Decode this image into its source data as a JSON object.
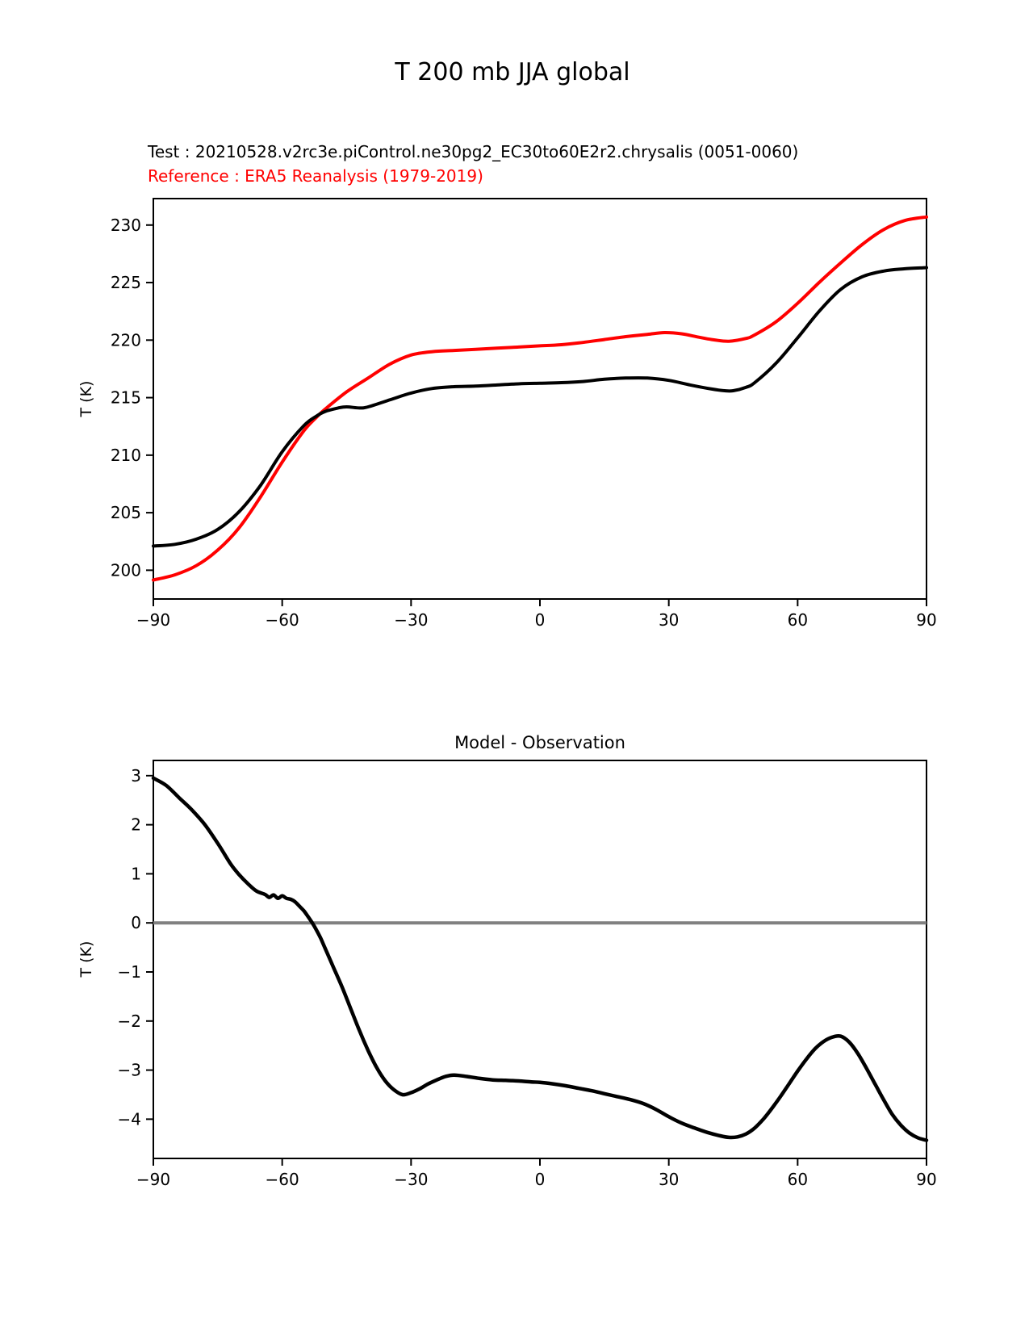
{
  "figure": {
    "title": "T 200 mb JJA global",
    "test_label": "Test : 20210528.v2rc3e.piControl.ne30pg2_EC30to60E2r2.chrysalis (0051-0060)",
    "reference_label": "Reference : ERA5 Reanalysis (1979-2019)"
  },
  "colors": {
    "test_curve": "#000000",
    "reference_curve": "#ff0000",
    "diff_curve": "#000000",
    "zero_line": "#808080",
    "reference_text": "#ff0000"
  },
  "chart_data": [
    {
      "type": "line",
      "title": "",
      "xlabel": "",
      "ylabel": "T (K)",
      "xlim": [
        -90,
        90
      ],
      "ylim": [
        197.5,
        232.3
      ],
      "xticks": [
        -90,
        -60,
        -30,
        0,
        30,
        60,
        90
      ],
      "yticks": [
        200,
        205,
        210,
        215,
        220,
        225,
        230
      ],
      "grid": false,
      "legend_position": "none",
      "series": [
        {
          "name": "Test : 20210528.v2rc3e.piControl.ne30pg2_EC30to60E2r2.chrysalis (0051-0060)",
          "color_key": "test_curve",
          "points": [
            [
              -90,
              202.1
            ],
            [
              -85,
              202.25
            ],
            [
              -80,
              202.7
            ],
            [
              -75,
              203.55
            ],
            [
              -70,
              205.1
            ],
            [
              -65,
              207.4
            ],
            [
              -60,
              210.3
            ],
            [
              -55,
              212.55
            ],
            [
              -52,
              213.4
            ],
            [
              -50,
              213.8
            ],
            [
              -47,
              214.1
            ],
            [
              -45,
              214.2
            ],
            [
              -42,
              214.1
            ],
            [
              -40,
              214.2
            ],
            [
              -35,
              214.8
            ],
            [
              -30,
              215.4
            ],
            [
              -25,
              215.8
            ],
            [
              -20,
              215.95
            ],
            [
              -15,
              216.0
            ],
            [
              -10,
              216.1
            ],
            [
              -5,
              216.2
            ],
            [
              0,
              216.25
            ],
            [
              5,
              216.3
            ],
            [
              10,
              216.4
            ],
            [
              15,
              216.6
            ],
            [
              20,
              216.7
            ],
            [
              25,
              216.7
            ],
            [
              30,
              216.5
            ],
            [
              35,
              216.1
            ],
            [
              40,
              215.75
            ],
            [
              43,
              215.6
            ],
            [
              45,
              215.6
            ],
            [
              48,
              215.9
            ],
            [
              50,
              216.3
            ],
            [
              55,
              218.0
            ],
            [
              60,
              220.2
            ],
            [
              65,
              222.5
            ],
            [
              70,
              224.4
            ],
            [
              75,
              225.5
            ],
            [
              80,
              226.0
            ],
            [
              85,
              226.2
            ],
            [
              90,
              226.3
            ]
          ]
        },
        {
          "name": "Reference : ERA5 Reanalysis (1979-2019)",
          "color_key": "reference_curve",
          "points": [
            [
              -90,
              199.15
            ],
            [
              -85,
              199.6
            ],
            [
              -80,
              200.4
            ],
            [
              -75,
              201.75
            ],
            [
              -70,
              203.7
            ],
            [
              -65,
              206.4
            ],
            [
              -60,
              209.4
            ],
            [
              -55,
              212.1
            ],
            [
              -52,
              213.3
            ],
            [
              -50,
              214.0
            ],
            [
              -45,
              215.5
            ],
            [
              -40,
              216.7
            ],
            [
              -35,
              217.9
            ],
            [
              -30,
              218.7
            ],
            [
              -25,
              219.0
            ],
            [
              -20,
              219.1
            ],
            [
              -15,
              219.2
            ],
            [
              -10,
              219.3
            ],
            [
              -5,
              219.4
            ],
            [
              0,
              219.5
            ],
            [
              5,
              219.6
            ],
            [
              10,
              219.8
            ],
            [
              15,
              220.05
            ],
            [
              20,
              220.3
            ],
            [
              25,
              220.5
            ],
            [
              29,
              220.65
            ],
            [
              33,
              220.55
            ],
            [
              37,
              220.25
            ],
            [
              40,
              220.05
            ],
            [
              44,
              219.9
            ],
            [
              48,
              220.15
            ],
            [
              50,
              220.45
            ],
            [
              55,
              221.6
            ],
            [
              60,
              223.2
            ],
            [
              65,
              225.0
            ],
            [
              70,
              226.7
            ],
            [
              75,
              228.3
            ],
            [
              80,
              229.6
            ],
            [
              85,
              230.4
            ],
            [
              90,
              230.7
            ]
          ]
        }
      ]
    },
    {
      "type": "line",
      "title": "Model - Observation",
      "xlabel": "",
      "ylabel": "T (K)",
      "xlim": [
        -90,
        90
      ],
      "ylim": [
        -4.8,
        3.31
      ],
      "xticks": [
        -90,
        -60,
        -30,
        0,
        30,
        60,
        90
      ],
      "yticks": [
        3,
        2,
        1,
        0,
        -1,
        -2,
        -3,
        -4
      ],
      "grid": false,
      "zero_line": 0,
      "legend_position": "none",
      "series": [
        {
          "name": "Model - Observation",
          "color_key": "diff_curve",
          "points": [
            [
              -90,
              2.95
            ],
            [
              -87,
              2.8
            ],
            [
              -84,
              2.55
            ],
            [
              -81,
              2.3
            ],
            [
              -78,
              2.0
            ],
            [
              -75,
              1.62
            ],
            [
              -72,
              1.2
            ],
            [
              -70,
              0.98
            ],
            [
              -68,
              0.8
            ],
            [
              -66,
              0.65
            ],
            [
              -64,
              0.58
            ],
            [
              -63,
              0.52
            ],
            [
              -62,
              0.57
            ],
            [
              -61,
              0.5
            ],
            [
              -60,
              0.55
            ],
            [
              -59,
              0.5
            ],
            [
              -58,
              0.48
            ],
            [
              -57,
              0.43
            ],
            [
              -56,
              0.34
            ],
            [
              -55,
              0.25
            ],
            [
              -54,
              0.13
            ],
            [
              -53,
              0.0
            ],
            [
              -52,
              -0.15
            ],
            [
              -51,
              -0.32
            ],
            [
              -50,
              -0.52
            ],
            [
              -48,
              -0.92
            ],
            [
              -46,
              -1.32
            ],
            [
              -44,
              -1.76
            ],
            [
              -42,
              -2.2
            ],
            [
              -40,
              -2.6
            ],
            [
              -38,
              -2.95
            ],
            [
              -36,
              -3.22
            ],
            [
              -34,
              -3.4
            ],
            [
              -32,
              -3.5
            ],
            [
              -30,
              -3.46
            ],
            [
              -28,
              -3.38
            ],
            [
              -26,
              -3.28
            ],
            [
              -24,
              -3.2
            ],
            [
              -22,
              -3.13
            ],
            [
              -20,
              -3.1
            ],
            [
              -17,
              -3.13
            ],
            [
              -14,
              -3.17
            ],
            [
              -11,
              -3.2
            ],
            [
              -8,
              -3.21
            ],
            [
              -5,
              -3.22
            ],
            [
              -2,
              -3.24
            ],
            [
              0,
              -3.25
            ],
            [
              3,
              -3.28
            ],
            [
              6,
              -3.32
            ],
            [
              9,
              -3.37
            ],
            [
              12,
              -3.42
            ],
            [
              15,
              -3.48
            ],
            [
              18,
              -3.54
            ],
            [
              21,
              -3.6
            ],
            [
              24,
              -3.68
            ],
            [
              27,
              -3.8
            ],
            [
              30,
              -3.95
            ],
            [
              33,
              -4.08
            ],
            [
              36,
              -4.18
            ],
            [
              39,
              -4.27
            ],
            [
              42,
              -4.34
            ],
            [
              44,
              -4.37
            ],
            [
              46,
              -4.36
            ],
            [
              48,
              -4.3
            ],
            [
              50,
              -4.18
            ],
            [
              52,
              -4.0
            ],
            [
              54,
              -3.78
            ],
            [
              56,
              -3.54
            ],
            [
              58,
              -3.28
            ],
            [
              60,
              -3.02
            ],
            [
              62,
              -2.78
            ],
            [
              64,
              -2.57
            ],
            [
              66,
              -2.42
            ],
            [
              68,
              -2.33
            ],
            [
              70,
              -2.31
            ],
            [
              72,
              -2.43
            ],
            [
              74,
              -2.66
            ],
            [
              76,
              -2.96
            ],
            [
              78,
              -3.28
            ],
            [
              80,
              -3.6
            ],
            [
              82,
              -3.9
            ],
            [
              84,
              -4.12
            ],
            [
              86,
              -4.28
            ],
            [
              88,
              -4.38
            ],
            [
              90,
              -4.43
            ]
          ]
        }
      ]
    }
  ]
}
